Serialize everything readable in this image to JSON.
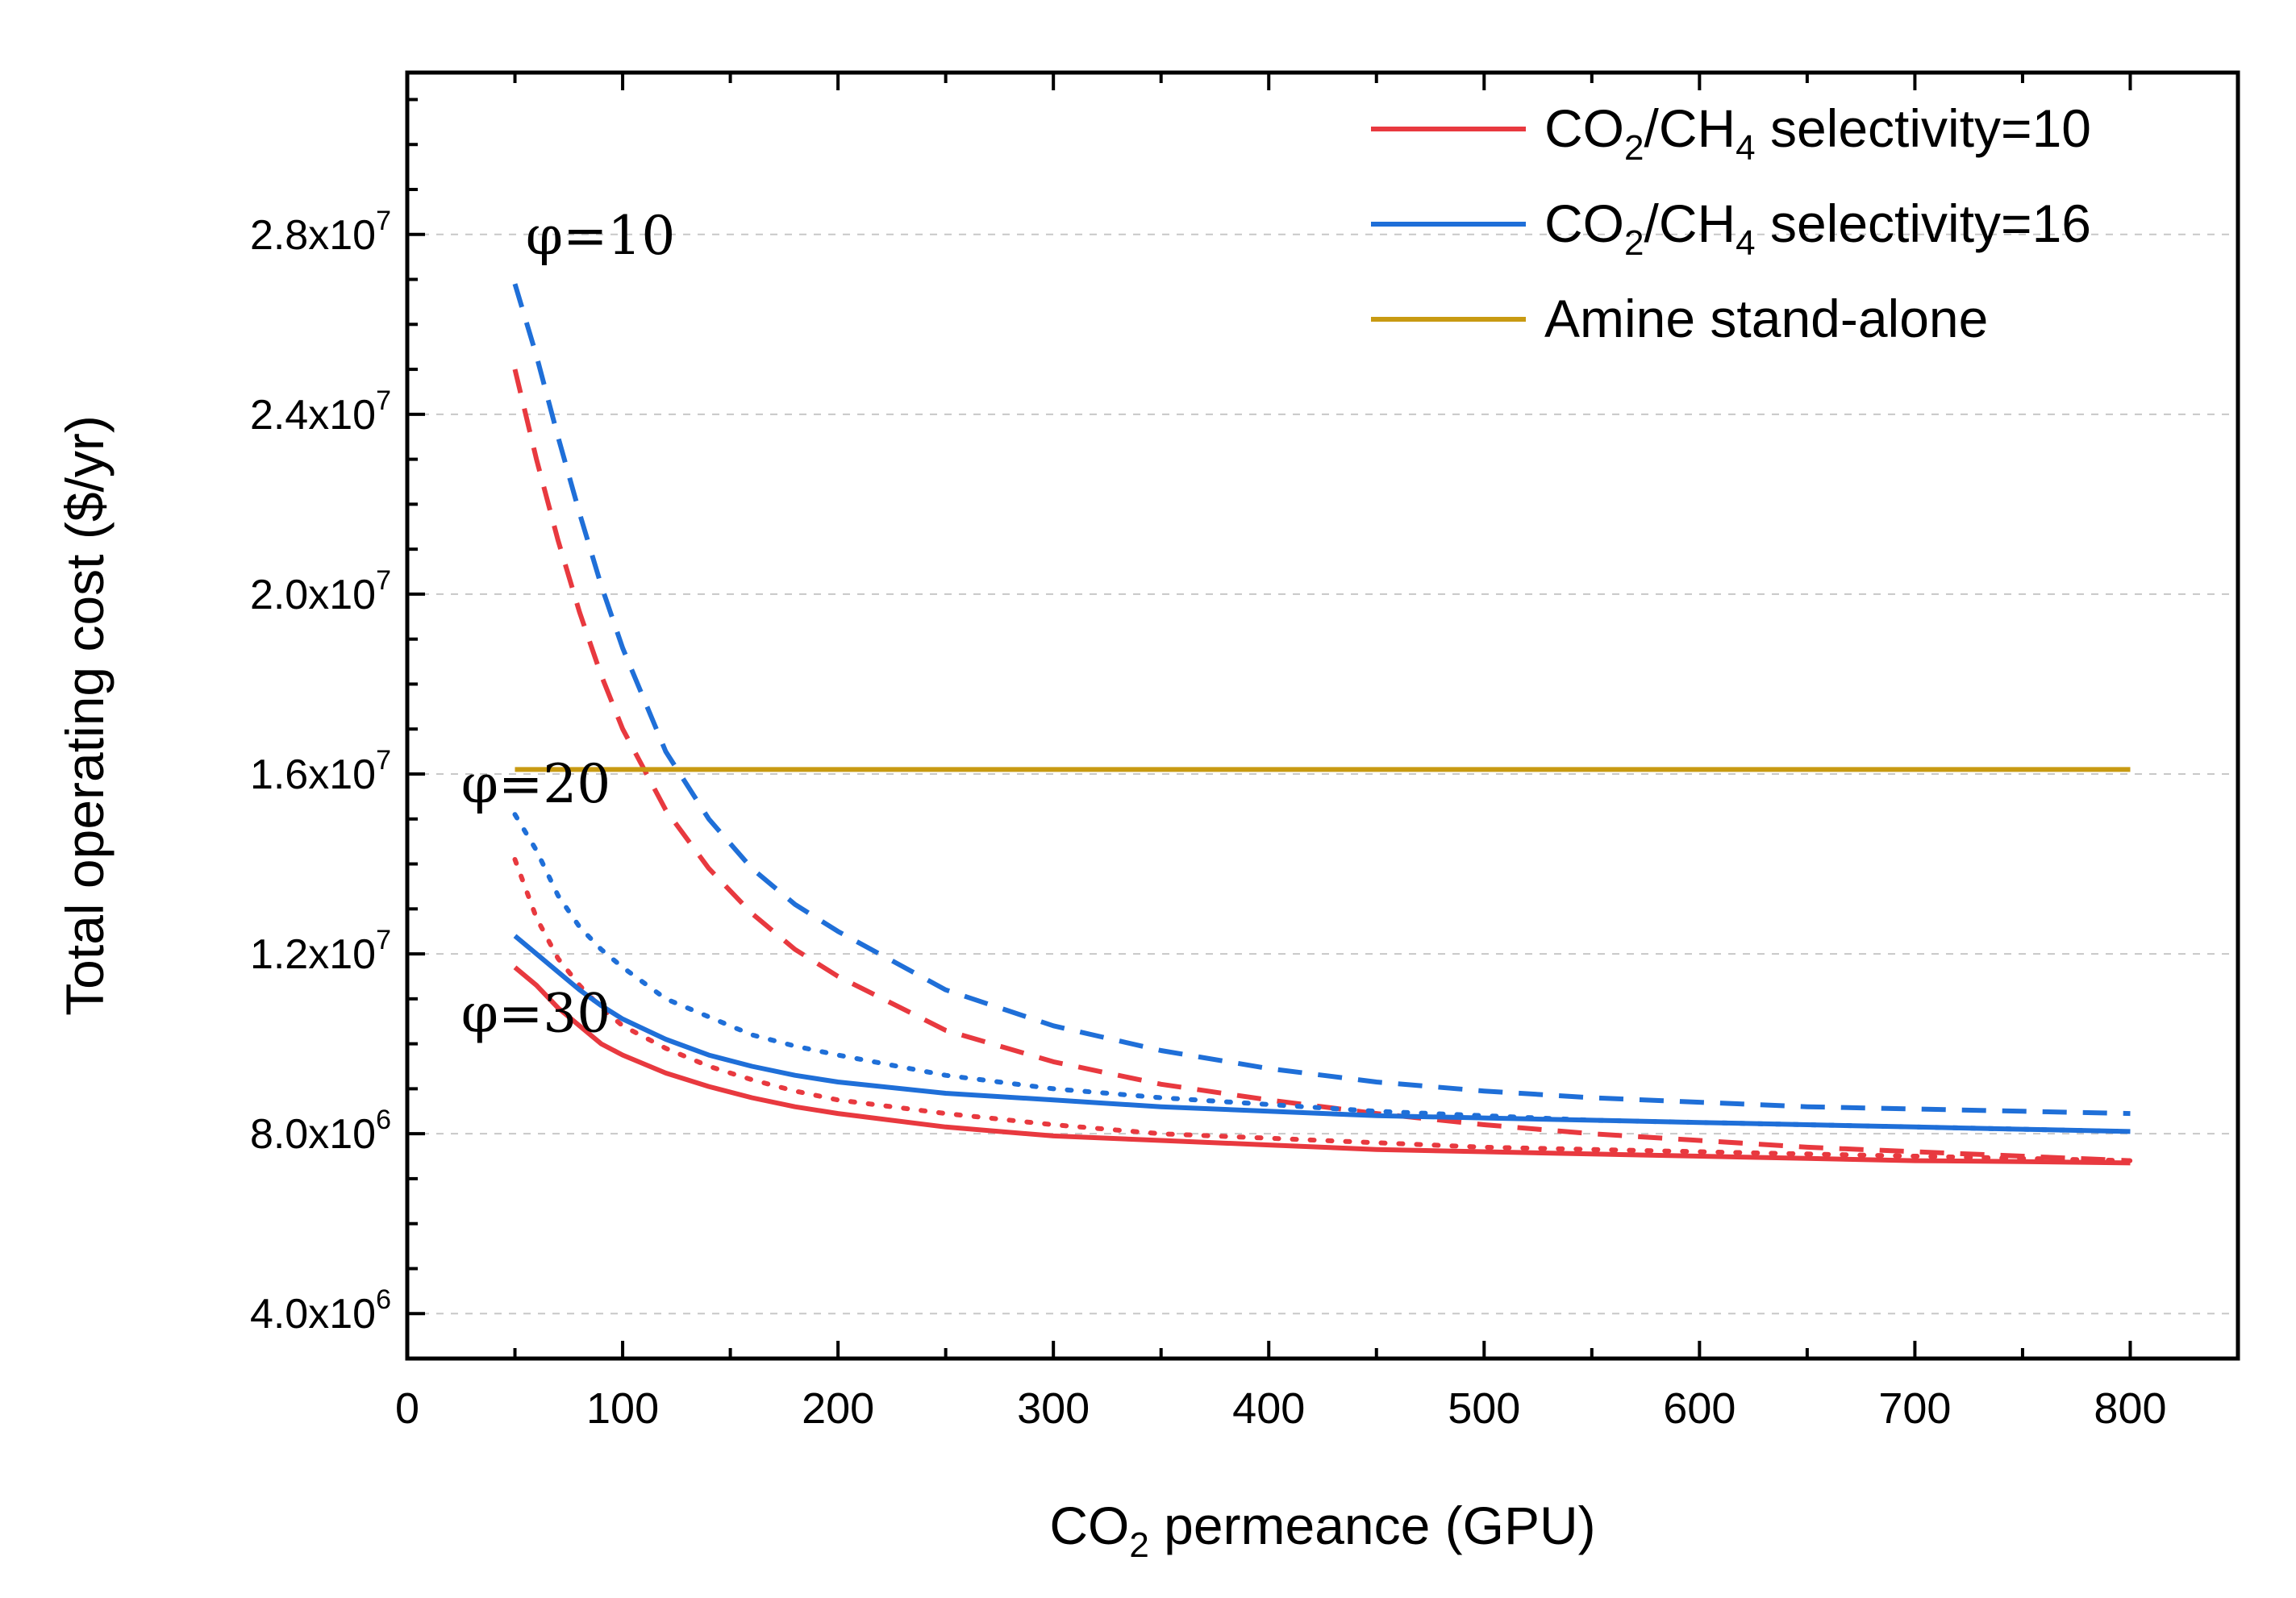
{
  "chart_data": {
    "type": "line",
    "title": "",
    "xlabel_main": "CO",
    "xlabel_sub": "2",
    "xlabel_rest": " permeance (GPU)",
    "ylabel": "Total operating cost ($/yr)",
    "xlim": [
      0,
      850
    ],
    "ylim": [
      3000000,
      31600000
    ],
    "x_ticks": [
      0,
      100,
      200,
      300,
      400,
      500,
      600,
      700,
      800
    ],
    "x_tick_labels": [
      "0",
      "100",
      "200",
      "300",
      "400",
      "500",
      "600",
      "700",
      "800"
    ],
    "y_ticks": [
      4000000,
      8000000,
      12000000,
      16000000,
      20000000,
      24000000,
      28000000
    ],
    "y_tick_mantissas": [
      "4.0x10",
      "8.0x10",
      "1.2x10",
      "1.6x10",
      "2.0x10",
      "2.4x10",
      "2.8x10"
    ],
    "y_tick_exponents": [
      "6",
      "6",
      "7",
      "7",
      "7",
      "7",
      "7"
    ],
    "grid": "horizontal dashed",
    "legend_position": "top-right",
    "colors": {
      "red": "#e8393f",
      "blue": "#1f6fd8",
      "gold": "#c89a12"
    },
    "legend": [
      {
        "main": "CO",
        "sub1": "2",
        "mid": "/CH",
        "sub2": "4",
        "rest": " selectivity=10",
        "color": "#e8393f"
      },
      {
        "main": "CO",
        "sub1": "2",
        "mid": "/CH",
        "sub2": "4",
        "rest": " selectivity=16",
        "color": "#1f6fd8"
      },
      {
        "main": "Amine stand-alone",
        "sub1": "",
        "mid": "",
        "sub2": "",
        "rest": "",
        "color": "#c89a12"
      }
    ],
    "annotations": [
      {
        "text": "φ=10",
        "x": 55,
        "y": 28000000
      },
      {
        "text": "φ=20",
        "x": 25,
        "y": 15800000
      },
      {
        "text": "φ=30",
        "x": 25,
        "y": 10700000
      }
    ],
    "x": [
      50,
      60,
      70,
      80,
      90,
      100,
      120,
      140,
      160,
      180,
      200,
      250,
      300,
      350,
      400,
      450,
      500,
      550,
      600,
      650,
      700,
      750,
      800
    ],
    "series": [
      {
        "name": "selectivity=10, φ=10",
        "color": "#e8393f",
        "style": "dashed",
        "values": [
          25000000,
          23000000,
          21200000,
          19600000,
          18200000,
          17000000,
          15200000,
          13900000,
          12900000,
          12100000,
          11500000,
          10300000,
          9600000,
          9100000,
          8750000,
          8450000,
          8200000,
          8000000,
          7850000,
          7700000,
          7600000,
          7500000,
          7400000
        ]
      },
      {
        "name": "selectivity=16, φ=10",
        "color": "#1f6fd8",
        "style": "dashed",
        "values": [
          26900000,
          25300000,
          23500000,
          21800000,
          20200000,
          18800000,
          16500000,
          15000000,
          13900000,
          13100000,
          12500000,
          11200000,
          10400000,
          9850000,
          9450000,
          9150000,
          8950000,
          8800000,
          8700000,
          8600000,
          8550000,
          8500000,
          8450000
        ]
      },
      {
        "name": "selectivity=10, φ=20",
        "color": "#e8393f",
        "style": "dotted",
        "values": [
          14100000,
          12800000,
          11900000,
          11300000,
          10800000,
          10400000,
          9900000,
          9500000,
          9200000,
          8950000,
          8750000,
          8450000,
          8200000,
          8000000,
          7900000,
          7800000,
          7700000,
          7650000,
          7600000,
          7550000,
          7500000,
          7450000,
          7400000
        ]
      },
      {
        "name": "selectivity=16, φ=20",
        "color": "#1f6fd8",
        "style": "dotted",
        "values": [
          15100000,
          14300000,
          13300000,
          12600000,
          12100000,
          11700000,
          11000000,
          10600000,
          10200000,
          9950000,
          9750000,
          9300000,
          9000000,
          8800000,
          8650000,
          8500000,
          8400000,
          8300000,
          8250000,
          8200000,
          8150000,
          8100000,
          8050000
        ]
      },
      {
        "name": "selectivity=10, φ=30",
        "color": "#e8393f",
        "style": "solid",
        "values": [
          11700000,
          11300000,
          10800000,
          10400000,
          10000000,
          9750000,
          9350000,
          9050000,
          8800000,
          8600000,
          8450000,
          8150000,
          7950000,
          7850000,
          7750000,
          7650000,
          7600000,
          7550000,
          7500000,
          7450000,
          7400000,
          7380000,
          7350000
        ]
      },
      {
        "name": "selectivity=16, φ=30",
        "color": "#1f6fd8",
        "style": "solid",
        "values": [
          12400000,
          12000000,
          11600000,
          11200000,
          10850000,
          10550000,
          10100000,
          9750000,
          9500000,
          9300000,
          9150000,
          8900000,
          8750000,
          8600000,
          8500000,
          8400000,
          8350000,
          8300000,
          8250000,
          8200000,
          8150000,
          8100000,
          8050000
        ]
      },
      {
        "name": "Amine stand-alone",
        "color": "#c89a12",
        "style": "solid",
        "values": [
          16100000,
          16100000,
          16100000,
          16100000,
          16100000,
          16100000,
          16100000,
          16100000,
          16100000,
          16100000,
          16100000,
          16100000,
          16100000,
          16100000,
          16100000,
          16100000,
          16100000,
          16100000,
          16100000,
          16100000,
          16100000,
          16100000,
          16100000
        ]
      }
    ]
  }
}
